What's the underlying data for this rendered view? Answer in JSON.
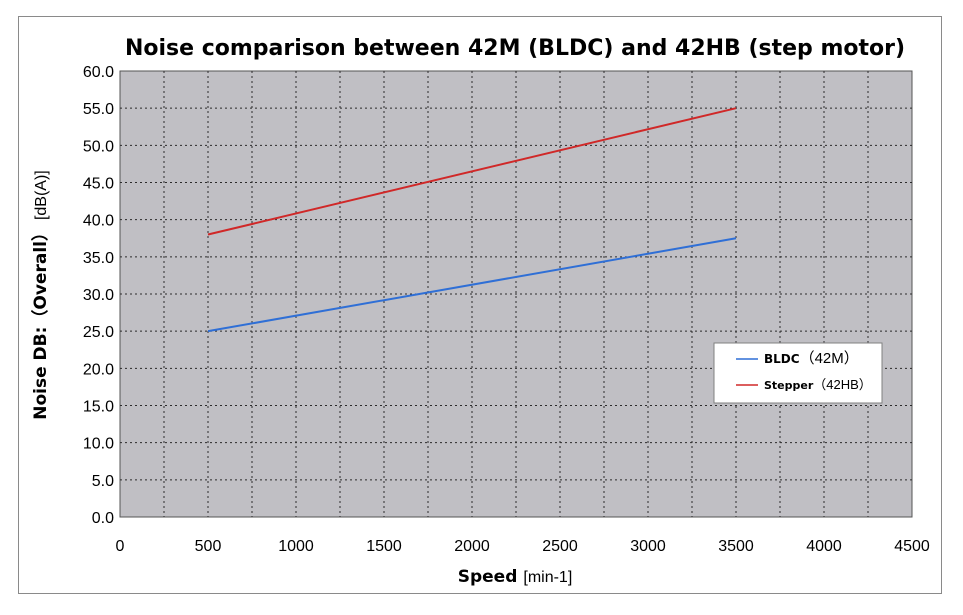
{
  "chart_data": {
    "type": "line",
    "title": "Noise comparison between 42M (BLDC) and 42HB (step motor)",
    "xlabel": "Speed",
    "xlabel_unit": "[min-1]",
    "ylabel": "Noise DB:（Overall）",
    "ylabel_unit": "[dB(A)]",
    "xlim": [
      0,
      4500
    ],
    "ylim": [
      0,
      60
    ],
    "x_ticks": [
      "0",
      "500",
      "1000",
      "1500",
      "2000",
      "2500",
      "3000",
      "3500",
      "4000",
      "4500"
    ],
    "y_ticks": [
      "0.0",
      "5.0",
      "10.0",
      "15.0",
      "20.0",
      "25.0",
      "30.0",
      "35.0",
      "40.0",
      "45.0",
      "50.0",
      "55.0",
      "60.0"
    ],
    "grid": true,
    "plot_background": "#c0bfc4",
    "legend_position": "right",
    "series": [
      {
        "name": "BLDC（42M）",
        "name_bold": "BLDC",
        "name_rest": "（42M）",
        "color": "#2f6fd6",
        "x": [
          500,
          3500
        ],
        "y": [
          25.0,
          37.5
        ]
      },
      {
        "name": "Stepper（42HB）",
        "name_bold": "Stepper",
        "name_rest": "（42HB）",
        "color": "#d02828",
        "x": [
          500,
          3500
        ],
        "y": [
          38.0,
          55.0
        ]
      }
    ]
  }
}
